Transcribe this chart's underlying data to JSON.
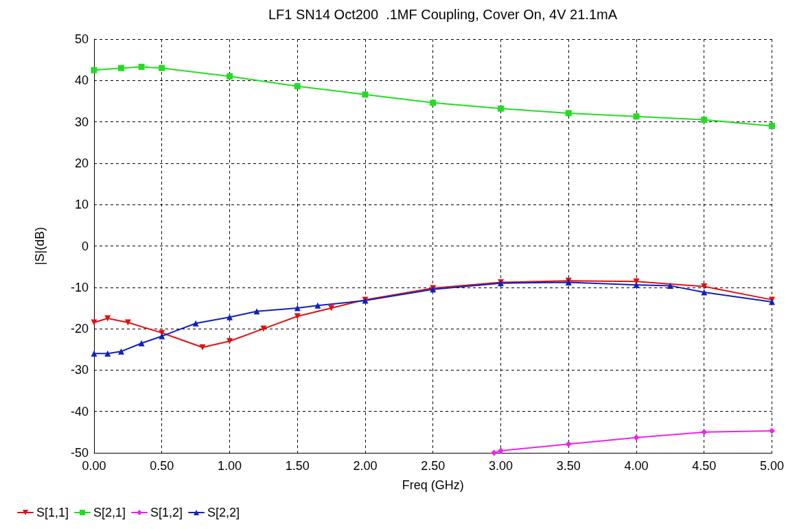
{
  "chart_data": {
    "type": "line",
    "title": "LF1 SN14 Oct200  .1MF Coupling, Cover On, 4V 21.1mA",
    "xlabel": "Freq (GHz)",
    "ylabel": "|S|(dB)",
    "xlim": [
      0,
      5
    ],
    "ylim": [
      -50,
      50
    ],
    "xticks": [
      {
        "value": 0,
        "label": "0.00"
      },
      {
        "value": 0.5,
        "label": "0.50"
      },
      {
        "value": 1,
        "label": "1.00"
      },
      {
        "value": 1.5,
        "label": "1.50"
      },
      {
        "value": 2,
        "label": "2.00"
      },
      {
        "value": 2.5,
        "label": "2.50"
      },
      {
        "value": 3,
        "label": "3.00"
      },
      {
        "value": 3.5,
        "label": "3.50"
      },
      {
        "value": 4,
        "label": "4.00"
      },
      {
        "value": 4.5,
        "label": "4.50"
      },
      {
        "value": 5,
        "label": "5.00"
      }
    ],
    "yticks": [
      -50,
      -40,
      -30,
      -20,
      -10,
      0,
      10,
      20,
      30,
      40,
      50
    ],
    "grid": true,
    "legend": "bottom left",
    "line_style": "solid",
    "series": [
      {
        "name": "S[1,1]",
        "color": "#e01010",
        "marker": "triangle-down",
        "x": [
          0,
          0.1,
          0.25,
          0.5,
          0.8,
          1,
          1.25,
          1.5,
          1.75,
          2,
          2.5,
          3,
          3.5,
          4,
          4.5,
          5
        ],
        "values": [
          -18.5,
          -17.5,
          -18.5,
          -21,
          -24.5,
          -23,
          -20,
          -17,
          -15,
          -13,
          -10.2,
          -8.8,
          -8.4,
          -8.6,
          -9.8,
          -13
        ]
      },
      {
        "name": "S[2,1]",
        "color": "#22dd22",
        "marker": "square",
        "x": [
          0,
          0.2,
          0.35,
          0.5,
          1,
          1.5,
          2,
          2.5,
          3,
          3.5,
          4,
          4.5,
          5
        ],
        "values": [
          42.5,
          43,
          43.3,
          43,
          41,
          38.6,
          36.6,
          34.6,
          33.2,
          32.1,
          31.3,
          30.5,
          29
        ]
      },
      {
        "name": "S[1,2]",
        "color": "#ee22ee",
        "marker": "diamond",
        "x": [
          2.95,
          3,
          3.5,
          4,
          4.5,
          5
        ],
        "values": [
          -50,
          -49.5,
          -47.9,
          -46.3,
          -45,
          -44.7
        ]
      },
      {
        "name": "S[2,2]",
        "color": "#1020c0",
        "marker": "triangle",
        "x": [
          0,
          0.1,
          0.2,
          0.35,
          0.5,
          0.75,
          1,
          1.2,
          1.5,
          1.65,
          2,
          2.5,
          3,
          3.5,
          4,
          4.25,
          4.5,
          5
        ],
        "values": [
          -26,
          -26,
          -25.5,
          -23.5,
          -21.8,
          -18.7,
          -17.2,
          -15.8,
          -15,
          -14.4,
          -13.2,
          -10.5,
          -9,
          -8.8,
          -9.4,
          -9.6,
          -11.2,
          -13.5
        ]
      }
    ]
  }
}
